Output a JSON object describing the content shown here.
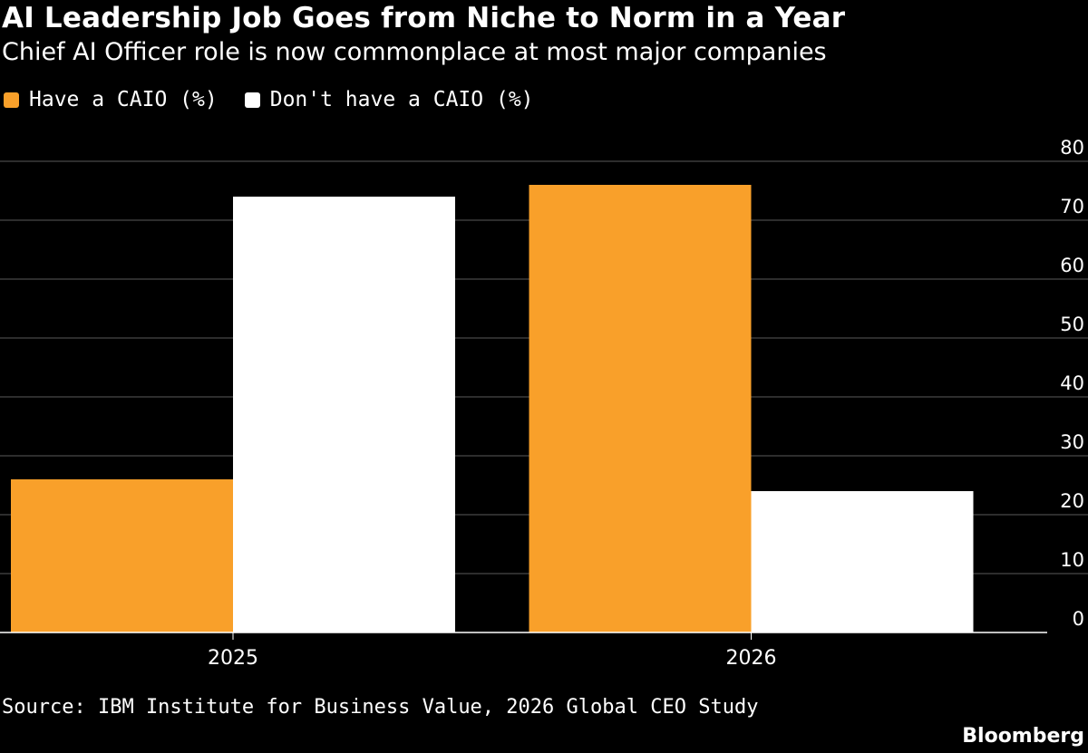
{
  "header": {
    "title": "AI Leadership Job Goes from Niche to Norm in a Year",
    "subtitle": "Chief AI Officer role is now commonplace at most major companies"
  },
  "colors": {
    "background": "#000000",
    "have": "#f9a02a",
    "dont_have": "#ffffff",
    "grid": "#5a5a5a",
    "text": "#ffffff"
  },
  "chart_data": {
    "type": "bar",
    "categories": [
      "2025",
      "2026"
    ],
    "series": [
      {
        "name": "Have a CAIO (%)",
        "values": [
          26,
          76
        ]
      },
      {
        "name": "Don't have a CAIO (%)",
        "values": [
          74,
          24
        ]
      }
    ],
    "ylim": [
      0,
      80
    ],
    "yticks": [
      0,
      10,
      20,
      30,
      40,
      50,
      60,
      70,
      80
    ],
    "y_axis_position": "right",
    "grid": true,
    "legend_position": "top-left",
    "xlabel": "",
    "ylabel": ""
  },
  "footer": {
    "source": "Source: IBM Institute for Business Value, 2026 Global CEO Study",
    "brand": "Bloomberg"
  }
}
